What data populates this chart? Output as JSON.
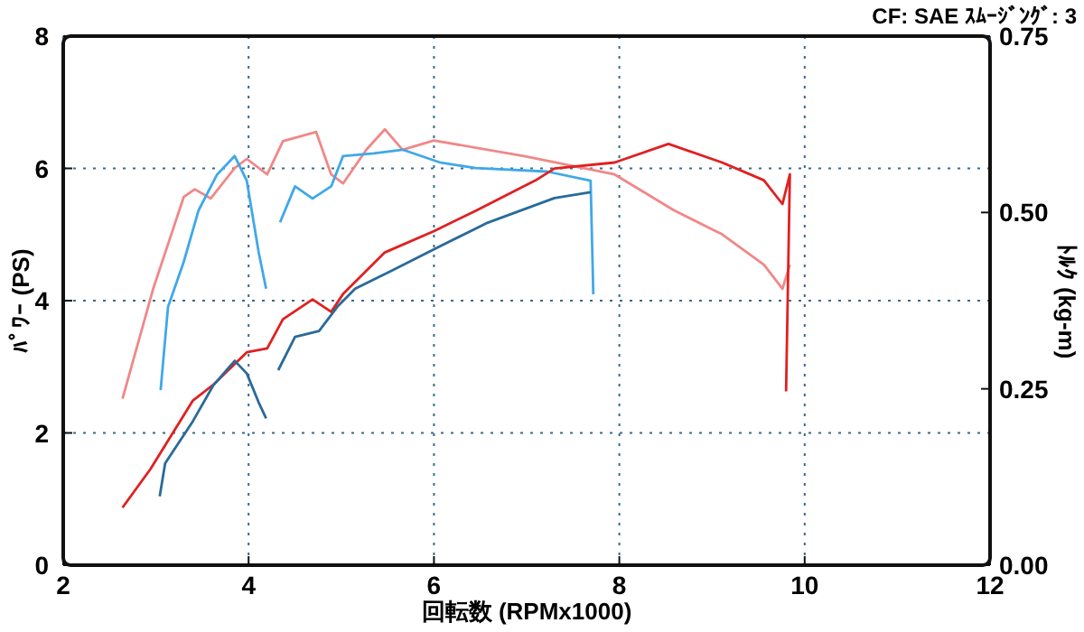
{
  "chart_data": {
    "type": "line",
    "xlabel": "回転数 (RPMx1000)",
    "ylabel": "ﾊﾟﾜｰ (PS)",
    "y2label": "ﾄﾙｸ (kg-m)",
    "annotations": [
      "CF: SAE ｽﾑｰｼﾞﾝｸﾞ: 3"
    ],
    "xlim": [
      2,
      12
    ],
    "xticks": [
      2,
      4,
      6,
      8,
      10,
      12
    ],
    "ylim": [
      0,
      8
    ],
    "yticks": [
      0,
      2,
      4,
      6,
      8
    ],
    "y2lim": [
      0,
      0.75
    ],
    "y2ticks": [
      {
        "value": 0,
        "label": "0.00"
      },
      {
        "value": 0.25,
        "label": "0.25"
      },
      {
        "value": 0.5,
        "label": "0.50"
      },
      {
        "value": 0.75,
        "label": "0.75"
      }
    ],
    "grid": true,
    "series": [
      {
        "color": "#f08888",
        "axis": "y2",
        "x": [
          2.64,
          2.97,
          3.3,
          3.42,
          3.59,
          3.85,
          3.98,
          4.2,
          4.37,
          4.73,
          4.89,
          5.02,
          5.27,
          5.47,
          5.66,
          6.0,
          6.97,
          7.95,
          8.59,
          9.11,
          9.56,
          9.76,
          9.84
        ],
        "values": [
          0.236,
          0.392,
          0.522,
          0.533,
          0.52,
          0.563,
          0.576,
          0.554,
          0.601,
          0.614,
          0.554,
          0.541,
          0.589,
          0.618,
          0.589,
          0.602,
          0.58,
          0.554,
          0.503,
          0.469,
          0.426,
          0.392,
          0.426
        ]
      },
      {
        "color": "#40a8e8",
        "axis": "y2",
        "x": [
          3.05,
          3.13,
          3.3,
          3.46,
          3.66,
          3.85,
          3.98,
          4.11,
          4.19
        ],
        "values": [
          0.248,
          0.366,
          0.43,
          0.503,
          0.554,
          0.58,
          0.545,
          0.443,
          0.392
        ]
      },
      {
        "color": "#40a8e8",
        "axis": "y2",
        "x": [
          4.34,
          4.5,
          4.69,
          4.89,
          5.02,
          5.35,
          5.66,
          6.06,
          6.45,
          7.22,
          7.69,
          7.72
        ],
        "values": [
          0.486,
          0.537,
          0.52,
          0.537,
          0.58,
          0.584,
          0.589,
          0.571,
          0.563,
          0.558,
          0.545,
          0.384
        ]
      },
      {
        "color": "#e02020",
        "x": [
          2.64,
          2.94,
          3.4,
          3.62,
          3.98,
          4.2,
          4.37,
          4.69,
          4.89,
          5.02,
          5.47,
          6.0,
          6.45,
          7.1,
          7.3,
          7.95,
          8.53,
          9.11,
          9.56,
          9.76,
          9.84,
          9.8
        ],
        "values": [
          0.87,
          1.45,
          2.49,
          2.73,
          3.22,
          3.28,
          3.72,
          4.02,
          3.83,
          4.1,
          4.73,
          5.05,
          5.36,
          5.82,
          6.0,
          6.09,
          6.37,
          6.09,
          5.82,
          5.46,
          5.91,
          2.63
        ]
      },
      {
        "color": "#2a6a9a",
        "x": [
          3.04,
          3.1,
          3.4,
          3.62,
          3.85,
          3.98,
          4.11,
          4.19
        ],
        "values": [
          1.04,
          1.54,
          2.18,
          2.72,
          3.09,
          2.9,
          2.46,
          2.22
        ]
      },
      {
        "color": "#2a6a9a",
        "x": [
          4.32,
          4.5,
          4.76,
          4.96,
          5.15,
          5.54,
          6.06,
          6.58,
          7.3,
          7.69
        ],
        "values": [
          2.95,
          3.45,
          3.54,
          3.91,
          4.18,
          4.45,
          4.82,
          5.18,
          5.55,
          5.64
        ]
      }
    ]
  }
}
